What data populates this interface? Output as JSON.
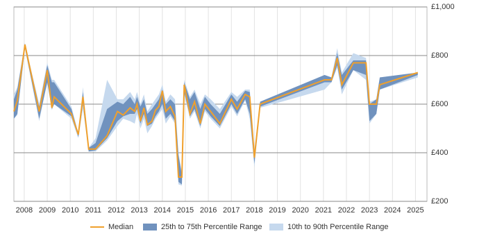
{
  "chart_data": {
    "type": "range-line",
    "x": [
      2007.55,
      2007.7,
      2008.03,
      2008.65,
      2009.0,
      2009.2,
      2009.3,
      2010.05,
      2010.35,
      2010.55,
      2010.8,
      2011.1,
      2011.6,
      2012.05,
      2012.3,
      2012.6,
      2012.8,
      2012.9,
      2013.05,
      2013.2,
      2013.35,
      2013.55,
      2013.7,
      2013.85,
      2014.0,
      2014.15,
      2014.35,
      2014.55,
      2014.7,
      2014.85,
      2014.95,
      2015.2,
      2015.4,
      2015.65,
      2015.85,
      2016.1,
      2016.5,
      2017.0,
      2017.25,
      2017.6,
      2017.8,
      2018.0,
      2018.25,
      2021.05,
      2021.35,
      2021.6,
      2021.8,
      2022.3,
      2022.85,
      2023.0,
      2023.3,
      2023.45,
      2025.1
    ],
    "series": [
      {
        "name": "Median",
        "color": "#f0a02c",
        "values": [
          570,
          615,
          845,
          570,
          740,
          585,
          630,
          560,
          475,
          630,
          415,
          415,
          470,
          570,
          555,
          585,
          570,
          600,
          530,
          585,
          515,
          530,
          575,
          590,
          655,
          570,
          590,
          550,
          300,
          300,
          680,
          560,
          610,
          520,
          600,
          570,
          520,
          620,
          580,
          640,
          630,
          380,
          600,
          700,
          700,
          790,
          680,
          770,
          770,
          600,
          600,
          680,
          730
        ]
      },
      {
        "name": "25th to 75th Percentile Range",
        "color": "#7092be",
        "low": [
          540,
          560,
          830,
          540,
          690,
          580,
          600,
          550,
          465,
          600,
          405,
          410,
          460,
          530,
          550,
          560,
          560,
          580,
          520,
          560,
          510,
          520,
          550,
          570,
          600,
          540,
          560,
          530,
          280,
          270,
          650,
          550,
          580,
          510,
          580,
          550,
          510,
          600,
          560,
          620,
          560,
          355,
          590,
          690,
          690,
          760,
          660,
          740,
          720,
          530,
          560,
          660,
          720
        ],
        "high": [
          620,
          660,
          850,
          590,
          760,
          690,
          690,
          580,
          480,
          650,
          420,
          440,
          580,
          610,
          600,
          630,
          600,
          630,
          590,
          620,
          560,
          580,
          600,
          620,
          660,
          600,
          620,
          600,
          390,
          310,
          690,
          620,
          650,
          580,
          630,
          600,
          560,
          640,
          610,
          655,
          650,
          400,
          610,
          720,
          710,
          810,
          720,
          780,
          780,
          600,
          620,
          710,
          730
        ]
      },
      {
        "name": "10th to 90th Percentile Range",
        "color": "#c6d9ee",
        "low": [
          540,
          555,
          830,
          530,
          690,
          575,
          600,
          540,
          460,
          580,
          405,
          405,
          450,
          510,
          540,
          530,
          520,
          560,
          500,
          540,
          480,
          510,
          540,
          560,
          580,
          520,
          550,
          520,
          270,
          265,
          640,
          540,
          570,
          500,
          570,
          540,
          500,
          590,
          550,
          615,
          540,
          340,
          585,
          660,
          690,
          750,
          640,
          740,
          700,
          520,
          560,
          660,
          710
        ],
        "high": [
          640,
          670,
          850,
          600,
          770,
          700,
          700,
          590,
          480,
          670,
          420,
          460,
          700,
          620,
          620,
          650,
          620,
          650,
          600,
          640,
          570,
          600,
          620,
          640,
          680,
          610,
          640,
          620,
          400,
          320,
          700,
          630,
          660,
          600,
          640,
          620,
          580,
          650,
          630,
          660,
          660,
          410,
          610,
          720,
          710,
          830,
          730,
          810,
          790,
          610,
          620,
          710,
          730
        ]
      }
    ],
    "xlim": [
      2007.55,
      2025.5
    ],
    "xticks": [
      2008,
      2009,
      2010,
      2011,
      2012,
      2013,
      2014,
      2015,
      2016,
      2017,
      2018,
      2019,
      2020,
      2021,
      2022,
      2023,
      2024,
      2025
    ],
    "ylim": [
      200,
      1000
    ],
    "yticks": [
      {
        "value": 200,
        "label": "£200"
      },
      {
        "value": 400,
        "label": "£400"
      },
      {
        "value": 600,
        "label": "£600"
      },
      {
        "value": 800,
        "label": "£800"
      },
      {
        "value": 1000,
        "label": "£1,000"
      }
    ],
    "grid": true
  }
}
